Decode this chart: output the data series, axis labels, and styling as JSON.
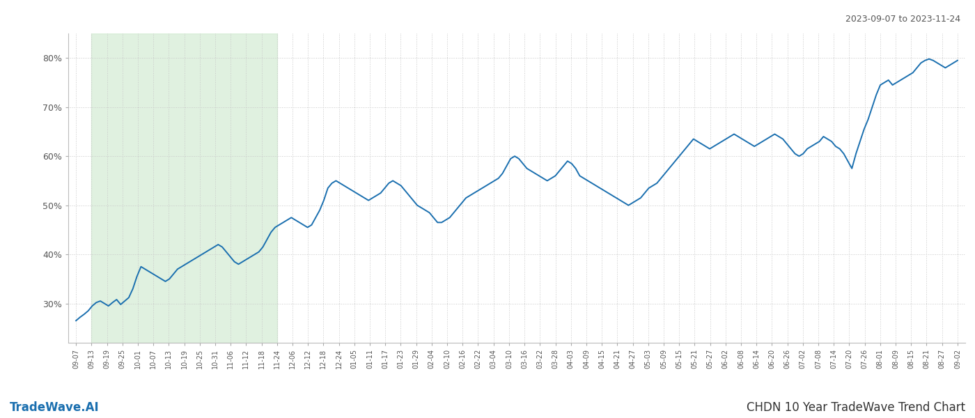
{
  "title_top_right": "2023-09-07 to 2023-11-24",
  "title_bottom_left": "TradeWave.AI",
  "title_bottom_right": "CHDN 10 Year TradeWave Trend Chart",
  "line_color": "#1a6faf",
  "line_width": 1.4,
  "shading_color": "#c8e6c8",
  "shading_alpha": 0.55,
  "bg_color": "#ffffff",
  "grid_color": "#c8c8c8",
  "grid_style": ":",
  "y_min": 22,
  "y_max": 85,
  "yticks": [
    30,
    40,
    50,
    60,
    70,
    80
  ],
  "x_labels": [
    "09-07",
    "09-13",
    "09-19",
    "09-25",
    "10-01",
    "10-07",
    "10-13",
    "10-19",
    "10-25",
    "10-31",
    "11-06",
    "11-12",
    "11-18",
    "11-24",
    "12-06",
    "12-12",
    "12-18",
    "12-24",
    "01-05",
    "01-11",
    "01-17",
    "01-23",
    "01-29",
    "02-04",
    "02-10",
    "02-16",
    "02-22",
    "03-04",
    "03-10",
    "03-16",
    "03-22",
    "03-28",
    "04-03",
    "04-09",
    "04-15",
    "04-21",
    "04-27",
    "05-03",
    "05-09",
    "05-15",
    "05-21",
    "05-27",
    "06-02",
    "06-08",
    "06-14",
    "06-20",
    "06-26",
    "07-02",
    "07-08",
    "07-14",
    "07-20",
    "07-26",
    "08-01",
    "08-09",
    "08-15",
    "08-21",
    "08-27",
    "09-02"
  ],
  "shade_start_label": "09-13",
  "shade_end_label": "11-24",
  "y_values": [
    26.5,
    27.2,
    27.8,
    28.5,
    29.5,
    30.2,
    30.5,
    30.0,
    29.5,
    30.2,
    30.8,
    29.8,
    30.5,
    31.2,
    33.0,
    35.5,
    37.5,
    37.0,
    36.5,
    36.0,
    35.5,
    35.0,
    34.5,
    35.0,
    36.0,
    37.0,
    37.5,
    38.0,
    38.5,
    39.0,
    39.5,
    40.0,
    40.5,
    41.0,
    41.5,
    42.0,
    41.5,
    40.5,
    39.5,
    38.5,
    38.0,
    38.5,
    39.0,
    39.5,
    40.0,
    40.5,
    41.5,
    43.0,
    44.5,
    45.5,
    46.0,
    46.5,
    47.0,
    47.5,
    47.0,
    46.5,
    46.0,
    45.5,
    46.0,
    47.5,
    49.0,
    51.0,
    53.5,
    54.5,
    55.0,
    54.5,
    54.0,
    53.5,
    53.0,
    52.5,
    52.0,
    51.5,
    51.0,
    51.5,
    52.0,
    52.5,
    53.5,
    54.5,
    55.0,
    54.5,
    54.0,
    53.0,
    52.0,
    51.0,
    50.0,
    49.5,
    49.0,
    48.5,
    47.5,
    46.5,
    46.5,
    47.0,
    47.5,
    48.5,
    49.5,
    50.5,
    51.5,
    52.0,
    52.5,
    53.0,
    53.5,
    54.0,
    54.5,
    55.0,
    55.5,
    56.5,
    58.0,
    59.5,
    60.0,
    59.5,
    58.5,
    57.5,
    57.0,
    56.5,
    56.0,
    55.5,
    55.0,
    55.5,
    56.0,
    57.0,
    58.0,
    59.0,
    58.5,
    57.5,
    56.0,
    55.5,
    55.0,
    54.5,
    54.0,
    53.5,
    53.0,
    52.5,
    52.0,
    51.5,
    51.0,
    50.5,
    50.0,
    50.5,
    51.0,
    51.5,
    52.5,
    53.5,
    54.0,
    54.5,
    55.5,
    56.5,
    57.5,
    58.5,
    59.5,
    60.5,
    61.5,
    62.5,
    63.5,
    63.0,
    62.5,
    62.0,
    61.5,
    62.0,
    62.5,
    63.0,
    63.5,
    64.0,
    64.5,
    64.0,
    63.5,
    63.0,
    62.5,
    62.0,
    62.5,
    63.0,
    63.5,
    64.0,
    64.5,
    64.0,
    63.5,
    62.5,
    61.5,
    60.5,
    60.0,
    60.5,
    61.5,
    62.0,
    62.5,
    63.0,
    64.0,
    63.5,
    63.0,
    62.0,
    61.5,
    60.5,
    59.0,
    57.5,
    60.5,
    63.0,
    65.5,
    67.5,
    70.0,
    72.5,
    74.5,
    75.0,
    75.5,
    74.5,
    75.0,
    75.5,
    76.0,
    76.5,
    77.0,
    78.0,
    79.0,
    79.5,
    79.8,
    79.5,
    79.0,
    78.5,
    78.0,
    78.5,
    79.0,
    79.5
  ]
}
